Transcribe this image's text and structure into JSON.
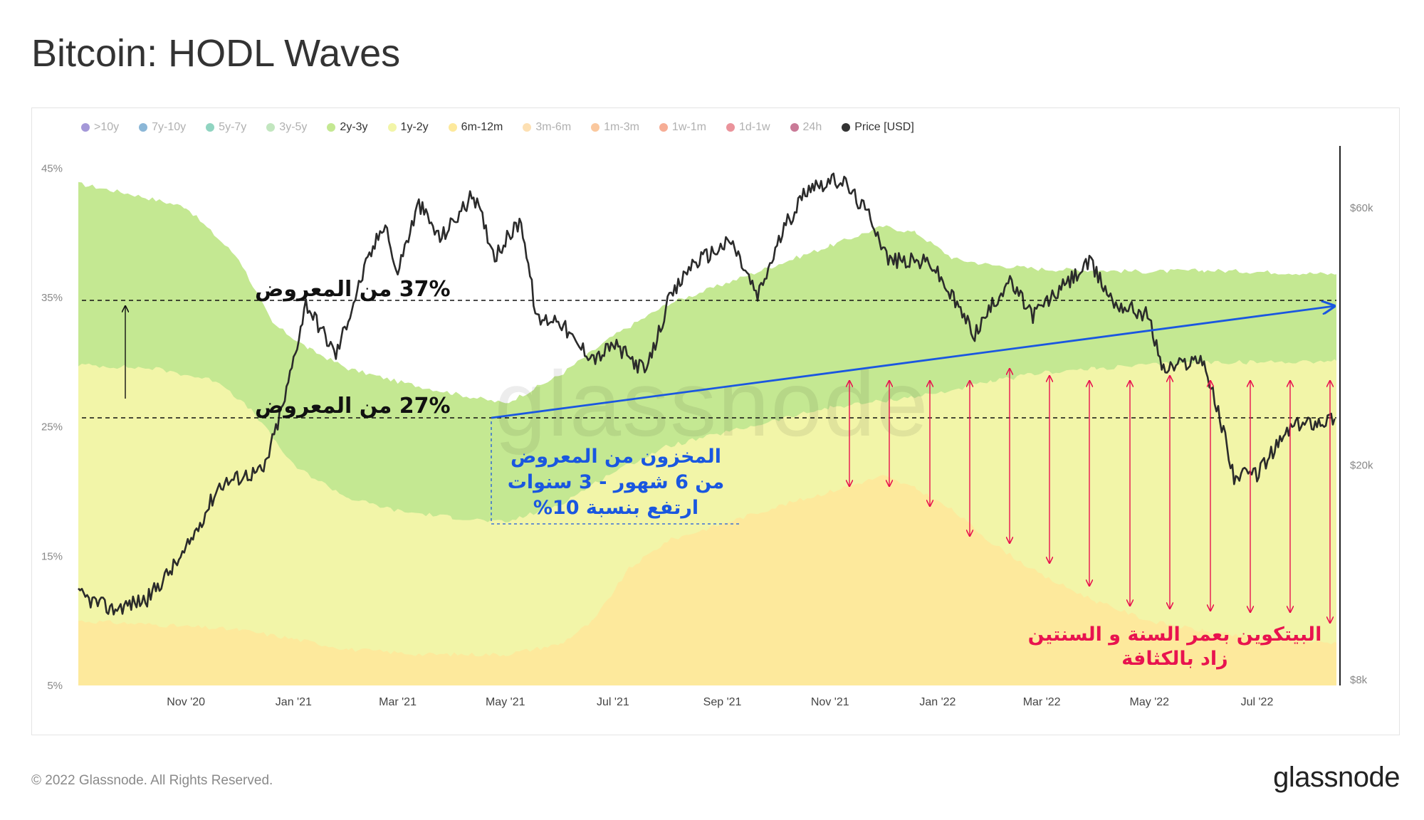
{
  "page": {
    "title": "Bitcoin: HODL Waves"
  },
  "legend": [
    {
      "label": ">10y",
      "color": "#5a44b8",
      "active": false
    },
    {
      "label": "7y-10y",
      "color": "#2c7bb6",
      "active": false
    },
    {
      "label": "5y-7y",
      "color": "#35b08e",
      "active": false
    },
    {
      "label": "3y-5y",
      "color": "#8fd18a",
      "active": false
    },
    {
      "label": "2y-3y",
      "color": "#c4e892",
      "active": true
    },
    {
      "label": "1y-2y",
      "color": "#f2f5a8",
      "active": true
    },
    {
      "label": "6m-12m",
      "color": "#fde99c",
      "active": true
    },
    {
      "label": "3m-6m",
      "color": "#fbc774",
      "active": false
    },
    {
      "label": "1m-3m",
      "color": "#f69b4f",
      "active": false
    },
    {
      "label": "1w-1m",
      "color": "#ef6a3e",
      "active": false
    },
    {
      "label": "1d-1w",
      "color": "#d83a48",
      "active": false
    },
    {
      "label": "24h",
      "color": "#9c0d41",
      "active": false
    },
    {
      "label": "Price [USD]",
      "color": "#333333",
      "active": true
    }
  ],
  "chart_data": {
    "type": "area",
    "x_ticks": [
      "Nov '20",
      "Jan '21",
      "Mar '21",
      "May '21",
      "Jul '21",
      "Sep '21",
      "Nov '21",
      "Jan '22",
      "Mar '22",
      "May '22",
      "Jul '22"
    ],
    "y_left_ticks": [
      "45%",
      "35%",
      "25%",
      "15%",
      "5%"
    ],
    "y_left_range": [
      5,
      47
    ],
    "y_right_ticks": [
      "$60k",
      "$20k",
      "$8k"
    ],
    "y_right_scale": "log",
    "x_range": [
      "2020-09-01",
      "2022-08-15"
    ],
    "watermark": "glassnode",
    "series": [
      {
        "name": "6m-12m",
        "color": "#fde99c",
        "points": [
          [
            "2020-09-01",
            10
          ],
          [
            "2020-10-15",
            9.7
          ],
          [
            "2020-12-01",
            9.3
          ],
          [
            "2021-01-01",
            8.6
          ],
          [
            "2021-02-01",
            7.8
          ],
          [
            "2021-03-15",
            7.4
          ],
          [
            "2021-05-01",
            7.4
          ],
          [
            "2021-06-01",
            8.2
          ],
          [
            "2021-06-20",
            10.0
          ],
          [
            "2021-07-10",
            14.0
          ],
          [
            "2021-08-01",
            16.2
          ],
          [
            "2021-09-01",
            17.5
          ],
          [
            "2021-10-01",
            18.8
          ],
          [
            "2021-11-01",
            20.0
          ],
          [
            "2021-12-01",
            21.2
          ],
          [
            "2021-12-20",
            20.2
          ],
          [
            "2022-01-10",
            18.5
          ],
          [
            "2022-02-01",
            16.0
          ],
          [
            "2022-03-01",
            13.5
          ],
          [
            "2022-04-01",
            11.5
          ],
          [
            "2022-05-01",
            10.0
          ],
          [
            "2022-06-01",
            9.2
          ],
          [
            "2022-07-01",
            8.6
          ],
          [
            "2022-08-15",
            8.3
          ]
        ]
      },
      {
        "name": "1y-2y",
        "color": "#f2f5a8",
        "points": [
          [
            "2020-09-01",
            29.8
          ],
          [
            "2020-10-15",
            29.5
          ],
          [
            "2020-11-20",
            28.5
          ],
          [
            "2020-12-10",
            26.0
          ],
          [
            "2021-01-01",
            22.0
          ],
          [
            "2021-02-01",
            19.5
          ],
          [
            "2021-03-01",
            18.5
          ],
          [
            "2021-04-01",
            18.0
          ],
          [
            "2021-05-01",
            17.6
          ],
          [
            "2021-06-01",
            19.0
          ],
          [
            "2021-07-01",
            21.5
          ],
          [
            "2021-08-01",
            23.5
          ],
          [
            "2021-09-01",
            24.5
          ],
          [
            "2021-10-01",
            25.5
          ],
          [
            "2021-11-01",
            26.5
          ],
          [
            "2021-12-01",
            27.0
          ],
          [
            "2022-01-01",
            27.6
          ],
          [
            "2022-02-01",
            28.5
          ],
          [
            "2022-03-01",
            29.2
          ],
          [
            "2022-04-01",
            29.5
          ],
          [
            "2022-05-01",
            29.8
          ],
          [
            "2022-06-01",
            30.0
          ],
          [
            "2022-07-01",
            30.0
          ],
          [
            "2022-08-15",
            30.1
          ]
        ]
      },
      {
        "name": "2y-3y",
        "color": "#c4e892",
        "points": [
          [
            "2020-09-01",
            43.8
          ],
          [
            "2020-10-01",
            43.0
          ],
          [
            "2020-11-01",
            42.0
          ],
          [
            "2020-12-01",
            38.0
          ],
          [
            "2020-12-20",
            33.0
          ],
          [
            "2021-01-10",
            31.0
          ],
          [
            "2021-02-01",
            29.5
          ],
          [
            "2021-03-01",
            28.5
          ],
          [
            "2021-04-01",
            27.6
          ],
          [
            "2021-05-01",
            26.8
          ],
          [
            "2021-06-01",
            29.0
          ],
          [
            "2021-07-01",
            32.0
          ],
          [
            "2021-08-01",
            34.5
          ],
          [
            "2021-09-01",
            36.0
          ],
          [
            "2021-10-01",
            37.5
          ],
          [
            "2021-11-01",
            39.0
          ],
          [
            "2021-12-01",
            40.5
          ],
          [
            "2021-12-20",
            40.0
          ],
          [
            "2022-01-10",
            38.0
          ],
          [
            "2022-02-01",
            37.5
          ],
          [
            "2022-03-01",
            37.2
          ],
          [
            "2022-04-01",
            37.1
          ],
          [
            "2022-05-01",
            37.0
          ],
          [
            "2022-06-01",
            37.1
          ],
          [
            "2022-07-01",
            37.0
          ],
          [
            "2022-08-15",
            36.8
          ]
        ]
      },
      {
        "name": "Price [USD]",
        "color": "#333333",
        "axis": "right",
        "points": [
          [
            "2020-09-01",
            11500
          ],
          [
            "2020-09-20",
            10800
          ],
          [
            "2020-10-10",
            11300
          ],
          [
            "2020-10-31",
            13700
          ],
          [
            "2020-11-20",
            18400
          ],
          [
            "2020-12-05",
            19200
          ],
          [
            "2020-12-15",
            19500
          ],
          [
            "2020-12-27",
            26500
          ],
          [
            "2021-01-08",
            40000
          ],
          [
            "2021-01-25",
            32000
          ],
          [
            "2021-02-10",
            46000
          ],
          [
            "2021-02-22",
            57000
          ],
          [
            "2021-02-28",
            45000
          ],
          [
            "2021-03-13",
            61000
          ],
          [
            "2021-03-25",
            52500
          ],
          [
            "2021-04-13",
            63500
          ],
          [
            "2021-04-25",
            49000
          ],
          [
            "2021-05-10",
            57000
          ],
          [
            "2021-05-19",
            37000
          ],
          [
            "2021-05-31",
            37500
          ],
          [
            "2021-06-10",
            33500
          ],
          [
            "2021-06-22",
            31500
          ],
          [
            "2021-07-01",
            33500
          ],
          [
            "2021-07-20",
            29800
          ],
          [
            "2021-08-01",
            39800
          ],
          [
            "2021-08-14",
            47000
          ],
          [
            "2021-09-06",
            52000
          ],
          [
            "2021-09-21",
            41000
          ],
          [
            "2021-10-06",
            55000
          ],
          [
            "2021-10-20",
            66000
          ],
          [
            "2021-11-08",
            67500
          ],
          [
            "2021-11-25",
            57000
          ],
          [
            "2021-12-04",
            48000
          ],
          [
            "2021-12-28",
            47500
          ],
          [
            "2022-01-22",
            35000
          ],
          [
            "2022-02-10",
            44000
          ],
          [
            "2022-02-24",
            38000
          ],
          [
            "2022-03-28",
            47500
          ],
          [
            "2022-04-11",
            40000
          ],
          [
            "2022-04-30",
            38000
          ],
          [
            "2022-05-09",
            30000
          ],
          [
            "2022-05-31",
            31700
          ],
          [
            "2022-06-13",
            22500
          ],
          [
            "2022-06-18",
            19000
          ],
          [
            "2022-07-01",
            19300
          ],
          [
            "2022-07-20",
            23500
          ],
          [
            "2022-07-30",
            24000
          ],
          [
            "2022-08-14",
            24400
          ]
        ]
      }
    ],
    "annotations": [
      {
        "text": "37% من المعروض",
        "value": 37
      },
      {
        "text": "27% من المعروض",
        "value": 27
      },
      {
        "text_lines": [
          "المخزون من المعروض",
          "من 6 شهور - 3 سنوات",
          "ارتفع بنسبة 10%"
        ],
        "color": "#1a57e0"
      },
      {
        "text_lines": [
          "البيتكوين بعمر السنة و السنتين",
          "زاد بالكثافة"
        ],
        "color": "#e8134f"
      }
    ]
  },
  "footer": {
    "copyright": "© 2022 Glassnode. All Rights Reserved.",
    "brand": "glassnode"
  }
}
